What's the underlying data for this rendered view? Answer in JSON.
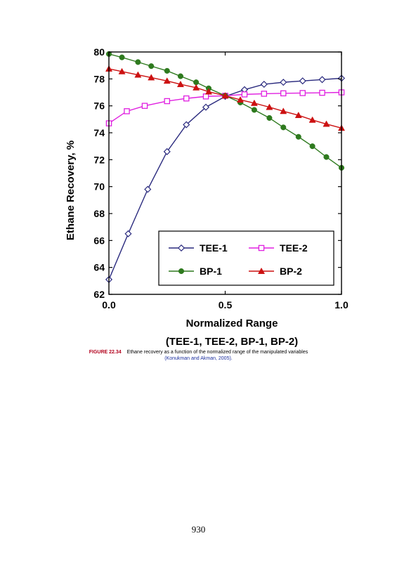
{
  "chart_data": {
    "type": "line",
    "title": "",
    "xlabel": "Normalized Range",
    "xlabel_sub": "(TEE-1, TEE-2, BP-1, BP-2)",
    "ylabel": "Ethane Recovery, %",
    "xlim": [
      0,
      1
    ],
    "ylim": [
      62,
      80
    ],
    "x_ticks": [
      "0.0",
      "0.5",
      "1.0"
    ],
    "y_ticks": [
      "62",
      "64",
      "66",
      "68",
      "70",
      "72",
      "74",
      "76",
      "78",
      "80"
    ],
    "grid": false,
    "legend_position": "bottom-right",
    "series": [
      {
        "name": "TEE-1",
        "color": "#2a2a7e",
        "marker": "diamond-open",
        "x": [
          0.0,
          0.083,
          0.167,
          0.25,
          0.333,
          0.417,
          0.5,
          0.583,
          0.667,
          0.75,
          0.833,
          0.917,
          1.0
        ],
        "values": [
          63.1,
          66.5,
          69.8,
          72.6,
          74.6,
          75.9,
          76.7,
          77.2,
          77.6,
          77.75,
          77.85,
          77.95,
          78.05
        ]
      },
      {
        "name": "TEE-2",
        "color": "#e020e0",
        "marker": "square-open",
        "x": [
          0.0,
          0.077,
          0.154,
          0.25,
          0.333,
          0.417,
          0.5,
          0.583,
          0.667,
          0.75,
          0.833,
          0.917,
          1.0
        ],
        "values": [
          74.7,
          75.6,
          76.0,
          76.35,
          76.55,
          76.7,
          76.75,
          76.85,
          76.9,
          76.93,
          76.95,
          76.97,
          77.0
        ]
      },
      {
        "name": "BP-1",
        "color": "#2e7a1e",
        "marker": "circle-filled",
        "x": [
          0.0,
          0.056,
          0.125,
          0.182,
          0.25,
          0.308,
          0.375,
          0.429,
          0.5,
          0.565,
          0.625,
          0.69,
          0.75,
          0.815,
          0.875,
          0.935,
          1.0
        ],
        "values": [
          79.85,
          79.6,
          79.25,
          78.95,
          78.6,
          78.2,
          77.75,
          77.3,
          76.75,
          76.25,
          75.7,
          75.1,
          74.4,
          73.7,
          73.0,
          72.2,
          71.4
        ]
      },
      {
        "name": "BP-2",
        "color": "#cc1111",
        "marker": "triangle-filled",
        "x": [
          0.0,
          0.056,
          0.125,
          0.182,
          0.25,
          0.308,
          0.375,
          0.429,
          0.5,
          0.565,
          0.625,
          0.69,
          0.75,
          0.815,
          0.875,
          0.935,
          1.0
        ],
        "values": [
          78.75,
          78.55,
          78.3,
          78.1,
          77.85,
          77.6,
          77.35,
          77.05,
          76.75,
          76.45,
          76.2,
          75.9,
          75.6,
          75.3,
          74.95,
          74.65,
          74.35
        ]
      }
    ]
  },
  "caption": {
    "figure_number": "FIGURE 22.34",
    "text": "Ethane recovery as a function of the normalized range of the manipulated variables",
    "citation": "(Konukman and Akman, 2005)."
  },
  "page_number": "930"
}
